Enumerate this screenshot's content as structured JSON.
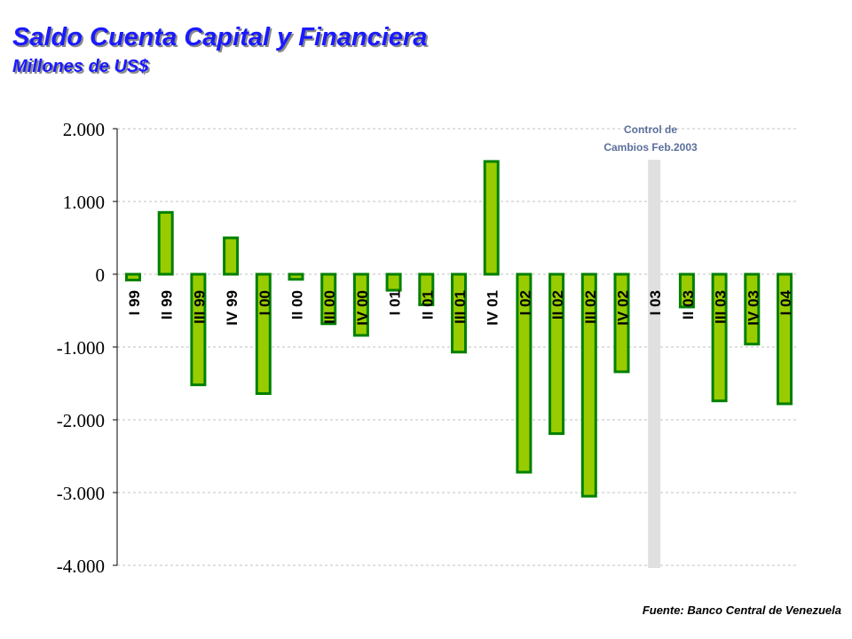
{
  "title": "Saldo Cuenta Capital y Financiera",
  "subtitle": "Millones de US$",
  "source": "Fuente: Banco Central de Venezuela",
  "annotation": {
    "line1": "Control de",
    "line2": "Cambios Feb.2003"
  },
  "chart_data": {
    "type": "bar",
    "categories": [
      "I 99",
      "II 99",
      "III 99",
      "IV 99",
      "I 00",
      "II 00",
      "III 00",
      "IV 00",
      "I 01",
      "II 01",
      "III 01",
      "IV 01",
      "I 02",
      "II 02",
      "III 02",
      "IV 02",
      "I 03",
      "II 03",
      "III 03",
      "IV 03",
      "I 04"
    ],
    "values": [
      -80,
      850,
      -1520,
      500,
      -1640,
      -70,
      -680,
      -840,
      -220,
      -420,
      -1070,
      1550,
      -2720,
      -2190,
      -3050,
      -1340,
      0,
      -450,
      -1740,
      -960,
      -1780
    ],
    "ylim": [
      -4000,
      2000
    ],
    "yticks": [
      2000,
      1000,
      0,
      -1000,
      -2000,
      -3000,
      -4000
    ],
    "ytick_labels": [
      "2.000",
      "1.000",
      "0",
      "-1.000",
      "-2.000",
      "-3.000",
      "-4.000"
    ],
    "grid": true,
    "highlight_category": "I 03",
    "colors": {
      "bar_fill": "#99cc00",
      "bar_border": "#008000",
      "highlight": "#e0e0e0",
      "grid": "#c0c0c0"
    }
  }
}
